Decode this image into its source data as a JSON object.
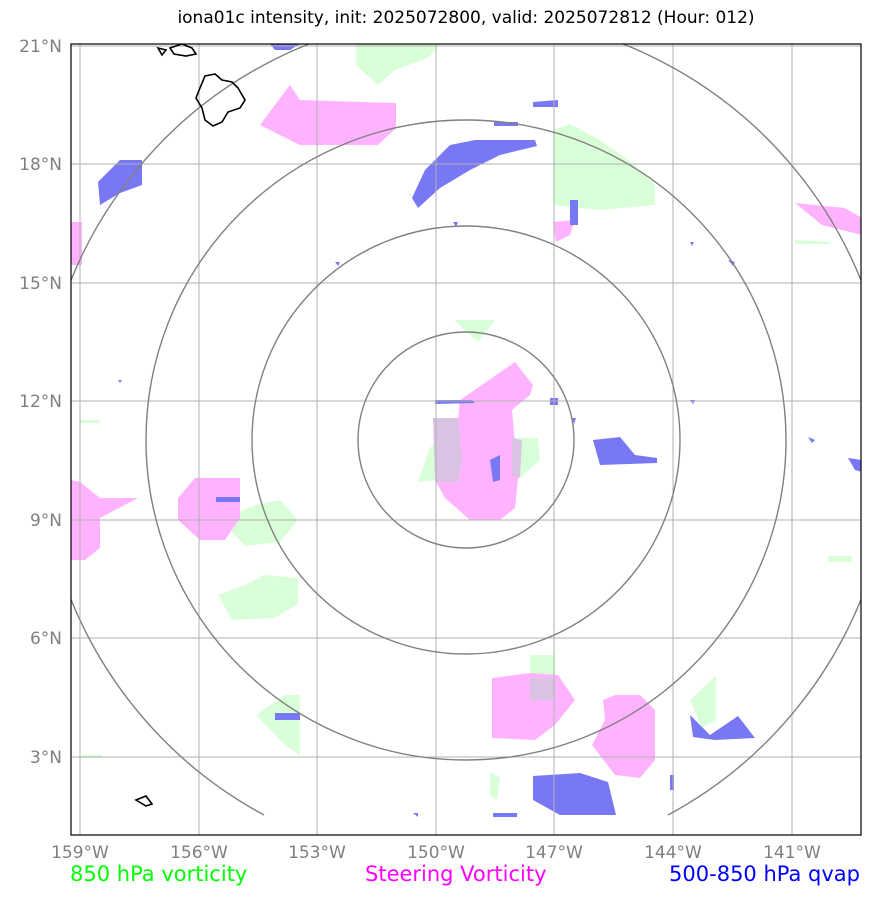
{
  "title": "iona01c intensity, init: 2025072800, valid: 2025072812 (Hour: 012)",
  "lat_ticks": [
    "21°N",
    "18°N",
    "15°N",
    "12°N",
    "9°N",
    "6°N",
    "3°N"
  ],
  "lon_ticks": [
    "159°W",
    "156°W",
    "153°W",
    "150°W",
    "147°W",
    "144°W",
    "141°W"
  ],
  "legend": [
    {
      "label": "850 hPa vorticity",
      "color": "#00ff00"
    },
    {
      "label": "Steering Vorticity",
      "color": "#ff00ff"
    },
    {
      "label": "500-850 hPa qvap",
      "color": "#0000ff"
    }
  ],
  "colors": {
    "vorticity_fill": "#d9ffd9",
    "steering_fill": "#ffb3ff",
    "qvap_fill": "#7878f5",
    "grid": "#b0b0b0",
    "range_rings": "#808080"
  }
}
